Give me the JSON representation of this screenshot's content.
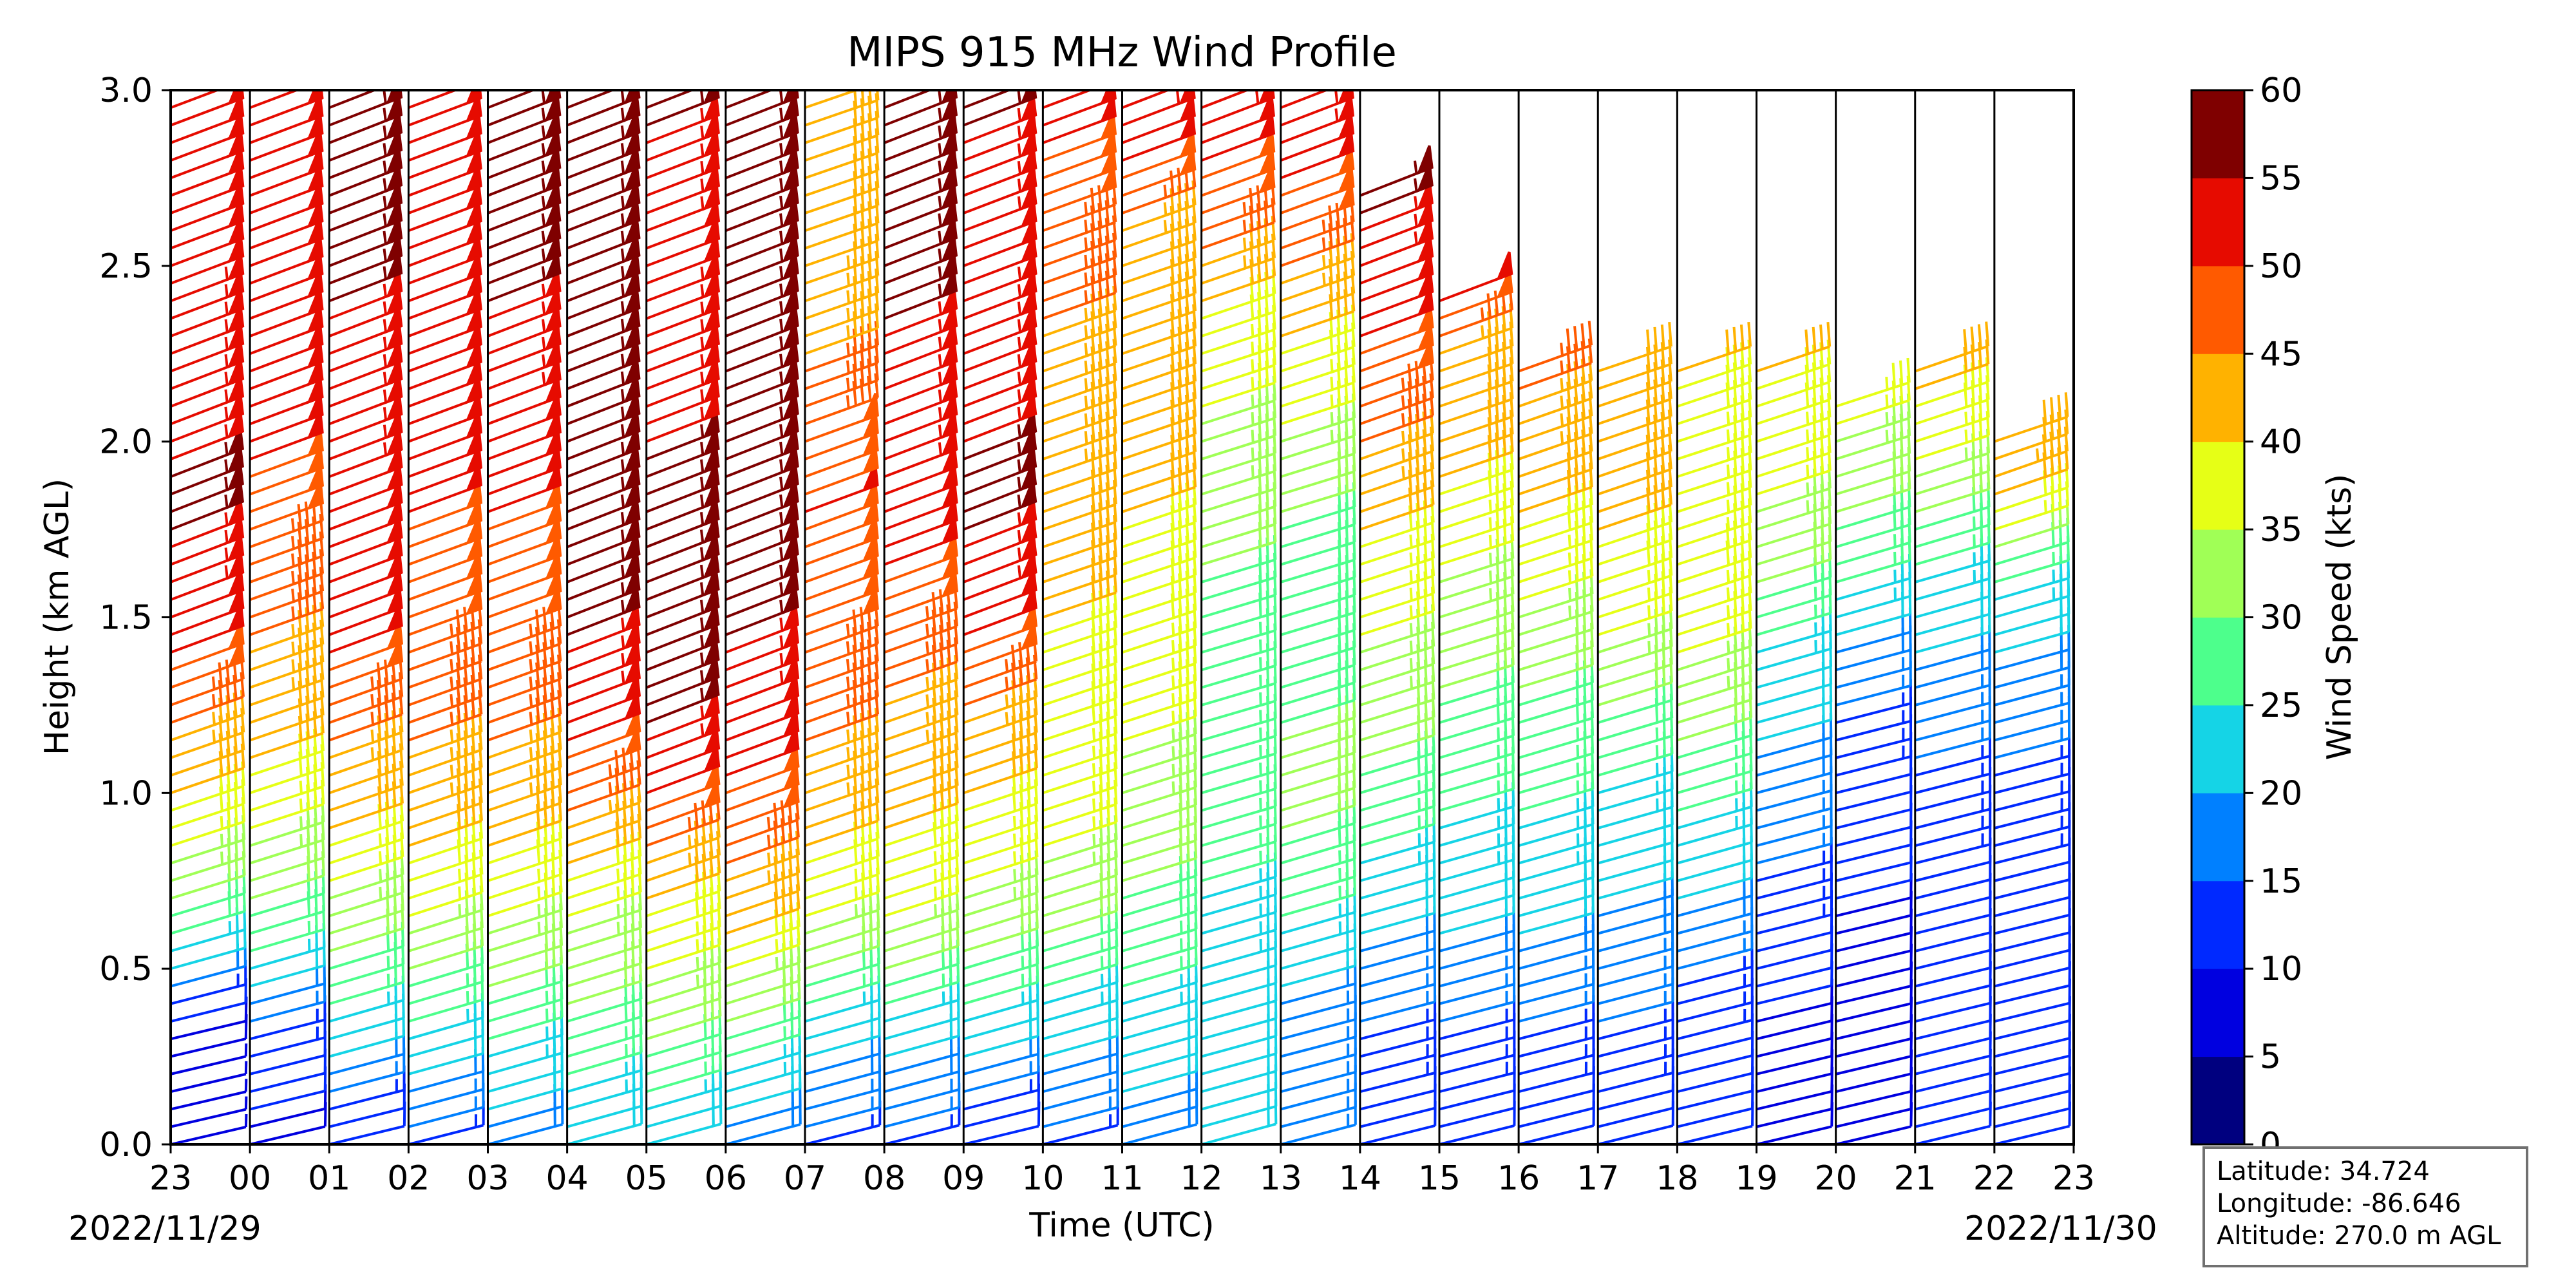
{
  "chart_data": {
    "type": "wind-barbs",
    "title": "MIPS 915 MHz Wind Profile",
    "xlabel": "Time (UTC)",
    "ylabel": "Height (km AGL)",
    "x_tick_labels": [
      "23",
      "00",
      "01",
      "02",
      "03",
      "04",
      "05",
      "06",
      "07",
      "08",
      "09",
      "10",
      "11",
      "12",
      "13",
      "14",
      "15",
      "16",
      "17",
      "18",
      "19",
      "20",
      "21",
      "22",
      "23"
    ],
    "x_hours_utc": [
      -1,
      0,
      1,
      2,
      3,
      4,
      5,
      6,
      7,
      8,
      9,
      10,
      11,
      12,
      13,
      14,
      15,
      16,
      17,
      18,
      19,
      20,
      21,
      22,
      23
    ],
    "start_date_label": "2022/11/29",
    "end_date_label": "2022/11/30",
    "ylim": [
      0.0,
      3.0
    ],
    "y_ticks": [
      "0.0",
      "0.5",
      "1.0",
      "1.5",
      "2.0",
      "2.5",
      "3.0"
    ],
    "colorbar": {
      "label": "Wind Speed (kts)",
      "ticks": [
        "0",
        "5",
        "10",
        "15",
        "20",
        "25",
        "30",
        "35",
        "40",
        "45",
        "50",
        "55",
        "60"
      ],
      "colors": [
        "#00007f",
        "#0000e0",
        "#0029ff",
        "#0080ff",
        "#15d4e6",
        "#4dff8c",
        "#a0ff56",
        "#e6ff16",
        "#ffb200",
        "#ff5a00",
        "#e60b00",
        "#7f0000"
      ]
    },
    "profiles": [
      {
        "hour": -1,
        "speed_kts": [
          [
            0.0,
            6
          ],
          [
            0.3,
            8
          ],
          [
            0.6,
            28
          ],
          [
            0.9,
            38
          ],
          [
            1.2,
            46
          ],
          [
            1.5,
            52
          ],
          [
            1.8,
            56
          ],
          [
            2.1,
            54
          ],
          [
            2.5,
            52
          ],
          [
            3.0,
            52
          ]
        ]
      },
      {
        "hour": 0,
        "speed_kts": [
          [
            0.0,
            8
          ],
          [
            0.3,
            14
          ],
          [
            0.6,
            28
          ],
          [
            0.9,
            36
          ],
          [
            1.2,
            42
          ],
          [
            1.5,
            46
          ],
          [
            1.8,
            48
          ],
          [
            2.1,
            52
          ],
          [
            3.0,
            52
          ]
        ]
      },
      {
        "hour": 1,
        "speed_kts": [
          [
            0.0,
            10
          ],
          [
            0.3,
            22
          ],
          [
            0.6,
            32
          ],
          [
            0.9,
            40
          ],
          [
            1.2,
            46
          ],
          [
            1.5,
            52
          ],
          [
            1.8,
            52
          ],
          [
            2.6,
            56
          ],
          [
            3.0,
            56
          ]
        ]
      },
      {
        "hour": 2,
        "speed_kts": [
          [
            0.0,
            14
          ],
          [
            0.3,
            24
          ],
          [
            0.6,
            34
          ],
          [
            0.9,
            42
          ],
          [
            1.2,
            46
          ],
          [
            1.5,
            48
          ],
          [
            1.8,
            50
          ],
          [
            2.5,
            52
          ],
          [
            3.0,
            52
          ]
        ]
      },
      {
        "hour": 3,
        "speed_kts": [
          [
            0.0,
            18
          ],
          [
            0.3,
            26
          ],
          [
            0.6,
            34
          ],
          [
            0.9,
            42
          ],
          [
            1.2,
            46
          ],
          [
            1.5,
            48
          ],
          [
            1.8,
            50
          ],
          [
            2.5,
            56
          ],
          [
            3.0,
            56
          ]
        ]
      },
      {
        "hour": 4,
        "speed_kts": [
          [
            0.0,
            20
          ],
          [
            0.3,
            28
          ],
          [
            0.6,
            34
          ],
          [
            0.9,
            44
          ],
          [
            1.2,
            52
          ],
          [
            1.5,
            56
          ],
          [
            1.8,
            56
          ],
          [
            2.5,
            56
          ],
          [
            3.0,
            56
          ]
        ]
      },
      {
        "hour": 5,
        "speed_kts": [
          [
            0.0,
            20
          ],
          [
            0.3,
            30
          ],
          [
            0.6,
            38
          ],
          [
            0.9,
            48
          ],
          [
            1.2,
            56
          ],
          [
            1.5,
            56
          ],
          [
            1.8,
            56
          ],
          [
            2.5,
            52
          ],
          [
            3.0,
            56
          ]
        ]
      },
      {
        "hour": 6,
        "speed_kts": [
          [
            0.0,
            18
          ],
          [
            0.3,
            28
          ],
          [
            0.6,
            40
          ],
          [
            0.9,
            48
          ],
          [
            1.2,
            52
          ],
          [
            1.5,
            56
          ],
          [
            1.8,
            56
          ],
          [
            2.5,
            56
          ],
          [
            3.0,
            56
          ]
        ]
      },
      {
        "hour": 7,
        "speed_kts": [
          [
            0.0,
            14
          ],
          [
            0.3,
            22
          ],
          [
            0.6,
            34
          ],
          [
            0.9,
            42
          ],
          [
            1.2,
            46
          ],
          [
            1.5,
            48
          ],
          [
            1.8,
            50
          ],
          [
            2.5,
            42
          ],
          [
            3.0,
            42
          ]
        ]
      },
      {
        "hour": 8,
        "speed_kts": [
          [
            0.0,
            14
          ],
          [
            0.3,
            22
          ],
          [
            0.6,
            34
          ],
          [
            0.9,
            40
          ],
          [
            1.2,
            44
          ],
          [
            1.5,
            48
          ],
          [
            1.8,
            52
          ],
          [
            2.5,
            56
          ],
          [
            3.0,
            56
          ]
        ]
      },
      {
        "hour": 9,
        "speed_kts": [
          [
            0.0,
            10
          ],
          [
            0.3,
            22
          ],
          [
            0.6,
            32
          ],
          [
            0.9,
            38
          ],
          [
            1.2,
            44
          ],
          [
            1.5,
            52
          ],
          [
            1.8,
            56
          ],
          [
            2.5,
            52
          ],
          [
            3.0,
            56
          ]
        ]
      },
      {
        "hour": 10,
        "speed_kts": [
          [
            0.0,
            14
          ],
          [
            0.3,
            22
          ],
          [
            0.6,
            30
          ],
          [
            0.9,
            36
          ],
          [
            1.2,
            38
          ],
          [
            1.5,
            40
          ],
          [
            1.8,
            42
          ],
          [
            2.5,
            46
          ],
          [
            3.0,
            52
          ]
        ]
      },
      {
        "hour": 11,
        "speed_kts": [
          [
            0.0,
            18
          ],
          [
            0.3,
            22
          ],
          [
            0.6,
            28
          ],
          [
            0.9,
            32
          ],
          [
            1.2,
            36
          ],
          [
            1.5,
            38
          ],
          [
            1.8,
            40
          ],
          [
            2.5,
            42
          ],
          [
            3.0,
            56
          ]
        ]
      },
      {
        "hour": 12,
        "speed_kts": [
          [
            0.3,
            20
          ],
          [
            0.6,
            24
          ],
          [
            0.9,
            26
          ],
          [
            1.2,
            26
          ],
          [
            1.5,
            28
          ],
          [
            1.8,
            32
          ],
          [
            2.2,
            36
          ],
          [
            2.5,
            44
          ],
          [
            3.0,
            56
          ]
        ]
      },
      {
        "hour": 13,
        "speed_kts": [
          [
            0.3,
            16
          ],
          [
            0.6,
            24
          ],
          [
            0.9,
            30
          ],
          [
            1.2,
            30
          ],
          [
            1.5,
            28
          ],
          [
            1.8,
            30
          ],
          [
            2.2,
            38
          ],
          [
            2.5,
            46
          ],
          [
            3.0,
            56
          ]
        ]
      },
      {
        "hour": 14,
        "speed_kts": [
          [
            0.1,
            12
          ],
          [
            0.4,
            16
          ],
          [
            0.7,
            22
          ],
          [
            1.0,
            28
          ],
          [
            1.3,
            34
          ],
          [
            1.6,
            36
          ],
          [
            1.9,
            44
          ],
          [
            2.3,
            50
          ],
          [
            2.7,
            56
          ]
        ]
      },
      {
        "hour": 15,
        "speed_kts": [
          [
            0.1,
            12
          ],
          [
            0.4,
            16
          ],
          [
            0.7,
            22
          ],
          [
            1.0,
            26
          ],
          [
            1.3,
            30
          ],
          [
            1.6,
            34
          ],
          [
            1.9,
            40
          ],
          [
            2.2,
            42
          ],
          [
            2.4,
            52
          ]
        ]
      },
      {
        "hour": 16,
        "speed_kts": [
          [
            0.1,
            12
          ],
          [
            0.4,
            16
          ],
          [
            0.7,
            22
          ],
          [
            1.0,
            26
          ],
          [
            1.3,
            30
          ],
          [
            1.6,
            36
          ],
          [
            1.9,
            42
          ],
          [
            2.2,
            46
          ]
        ]
      },
      {
        "hour": 17,
        "speed_kts": [
          [
            0.1,
            12
          ],
          [
            0.4,
            16
          ],
          [
            0.7,
            20
          ],
          [
            1.0,
            24
          ],
          [
            1.3,
            32
          ],
          [
            1.6,
            38
          ],
          [
            1.9,
            42
          ],
          [
            2.2,
            40
          ]
        ]
      },
      {
        "hour": 18,
        "speed_kts": [
          [
            0.1,
            10
          ],
          [
            0.4,
            14
          ],
          [
            0.7,
            20
          ],
          [
            1.0,
            26
          ],
          [
            1.3,
            34
          ],
          [
            1.6,
            38
          ],
          [
            1.9,
            36
          ],
          [
            2.2,
            40
          ]
        ]
      },
      {
        "hour": 19,
        "speed_kts": [
          [
            0.1,
            8
          ],
          [
            0.4,
            10
          ],
          [
            0.7,
            14
          ],
          [
            1.0,
            18
          ],
          [
            1.3,
            22
          ],
          [
            1.6,
            30
          ],
          [
            1.9,
            36
          ],
          [
            2.2,
            40
          ]
        ]
      },
      {
        "hour": 20,
        "speed_kts": [
          [
            0.1,
            8
          ],
          [
            0.4,
            8
          ],
          [
            0.7,
            10
          ],
          [
            1.0,
            12
          ],
          [
            1.3,
            16
          ],
          [
            1.6,
            26
          ],
          [
            1.9,
            32
          ],
          [
            2.1,
            36
          ]
        ]
      },
      {
        "hour": 21,
        "speed_kts": [
          [
            0.1,
            10
          ],
          [
            0.4,
            10
          ],
          [
            0.7,
            12
          ],
          [
            1.0,
            14
          ],
          [
            1.3,
            18
          ],
          [
            1.6,
            24
          ],
          [
            1.9,
            34
          ],
          [
            2.2,
            42
          ]
        ]
      },
      {
        "hour": 22,
        "speed_kts": [
          [
            0.1,
            10
          ],
          [
            0.4,
            10
          ],
          [
            0.7,
            12
          ],
          [
            1.0,
            14
          ],
          [
            1.3,
            18
          ],
          [
            1.6,
            26
          ],
          [
            1.9,
            44
          ],
          [
            2.0,
            40
          ]
        ]
      }
    ]
  },
  "station": {
    "latitude": "Latitude: 34.724",
    "longitude": "Longitude: -86.646",
    "altitude": "Altitude: 270.0 m AGL"
  }
}
